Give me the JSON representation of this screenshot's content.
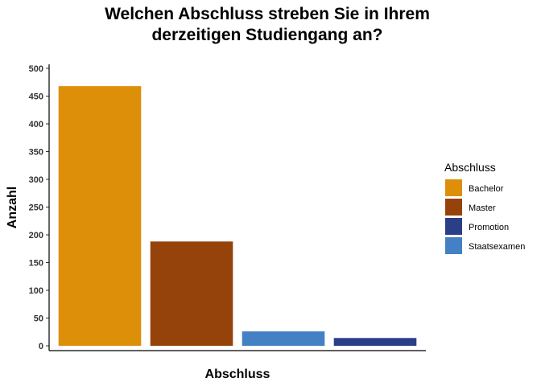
{
  "chart_data": {
    "type": "bar",
    "title": "Welchen Abschluss streben Sie in Ihrem derzeitigen Studiengang an?",
    "title_lines": [
      "Welchen Abschluss streben Sie in Ihrem",
      "derzeitigen Studiengang an?"
    ],
    "xlabel": "Abschluss",
    "ylabel": "Anzahl",
    "ylim": [
      0,
      500
    ],
    "yticks": [
      0,
      50,
      100,
      150,
      200,
      250,
      300,
      350,
      400,
      450,
      500
    ],
    "bars": [
      {
        "category": "Bachelor",
        "value": 468,
        "color": "#DE8F0A"
      },
      {
        "category": "Master",
        "value": 188,
        "color": "#96430B"
      },
      {
        "category": "Staatsexamen",
        "value": 26,
        "color": "#4480C4"
      },
      {
        "category": "Promotion",
        "value": 14,
        "color": "#2B3E88"
      }
    ],
    "legend": {
      "title": "Abschluss",
      "position": "right",
      "entries": [
        {
          "label": "Bachelor",
          "color": "#DE8F0A"
        },
        {
          "label": "Master",
          "color": "#96430B"
        },
        {
          "label": "Promotion",
          "color": "#2B3E88"
        },
        {
          "label": "Staatsexamen",
          "color": "#4480C4"
        }
      ]
    },
    "grid": false,
    "x_tick_labels_shown": false
  }
}
